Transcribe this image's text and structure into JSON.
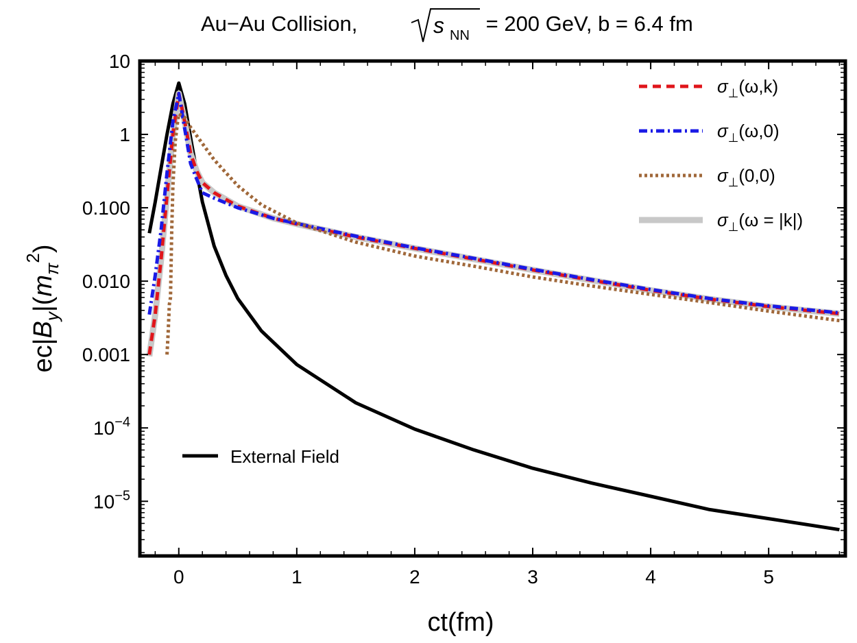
{
  "chart_data": {
    "type": "line",
    "title": {
      "prefix": "Au−Au Collision,",
      "sqrt_symbol": "s",
      "sqrt_subscript": "NN",
      "suffix": " = 200 GeV, b = 6.4 fm"
    },
    "xlabel": "ct(fm)",
    "ylabel": {
      "prefix": "ec|",
      "var": "B",
      "var_sub": "y",
      "mid": "|(",
      "mass": "m",
      "mass_sub": "π",
      "mass_sup": "2",
      "suffix": ")"
    },
    "y_scale": "log",
    "xlim": [
      -0.33,
      5.65
    ],
    "ylim": [
      1.8e-06,
      10
    ],
    "x_ticks": [
      {
        "value": 0,
        "label": "0"
      },
      {
        "value": 1,
        "label": "1"
      },
      {
        "value": 2,
        "label": "2"
      },
      {
        "value": 3,
        "label": "3"
      },
      {
        "value": 4,
        "label": "4"
      },
      {
        "value": 5,
        "label": "5"
      }
    ],
    "y_ticks": [
      {
        "value": 10,
        "label": "10"
      },
      {
        "value": 1,
        "label": "1"
      },
      {
        "value": 0.1,
        "label": "0.100"
      },
      {
        "value": 0.01,
        "label": "0.010"
      },
      {
        "value": 0.001,
        "label": "0.001"
      },
      {
        "value": 0.0001,
        "label": "10",
        "exp": "−4"
      },
      {
        "value": 1e-05,
        "label": "10",
        "exp": "−5"
      }
    ],
    "legend_position": "top-right",
    "series": [
      {
        "name": "External Field",
        "legend_position": "bottom-left",
        "color": "#000000",
        "dash": "solid",
        "x": [
          -0.25,
          -0.2,
          -0.15,
          -0.1,
          -0.05,
          0,
          0.05,
          0.1,
          0.15,
          0.2,
          0.3,
          0.4,
          0.5,
          0.7,
          1.0,
          1.5,
          2.0,
          2.5,
          3.0,
          3.5,
          4.0,
          4.5,
          5.0,
          5.6
        ],
        "y": [
          0.045,
          0.12,
          0.35,
          1.0,
          2.6,
          5.0,
          2.6,
          0.9,
          0.32,
          0.12,
          0.03,
          0.012,
          0.0058,
          0.0021,
          0.00073,
          0.00022,
          9.63e-05,
          5.02e-05,
          2.82e-05,
          1.77e-05,
          1.17e-05,
          7.7e-06,
          5.8e-06,
          4.1e-06
        ]
      },
      {
        "name": "σ⊥(ω = |k|)",
        "legend_label": {
          "sigma": "σ",
          "sub": "⊥",
          "args": "(ω = |k|)"
        },
        "color": "#c8c8c8",
        "dash": "solid",
        "x": [
          -0.25,
          -0.2,
          -0.15,
          -0.1,
          -0.05,
          0,
          0.05,
          0.1,
          0.15,
          0.2,
          0.3,
          0.5,
          0.8,
          1.0,
          1.5,
          2.0,
          2.5,
          3.0,
          3.5,
          4.0,
          4.5,
          5.0,
          5.6
        ],
        "y": [
          0.00095,
          0.0035,
          0.02,
          0.15,
          1.0,
          3.6,
          1.5,
          0.55,
          0.32,
          0.22,
          0.16,
          0.105,
          0.072,
          0.06,
          0.04,
          0.028,
          0.02,
          0.0142,
          0.0103,
          0.0075,
          0.0057,
          0.0045,
          0.0036
        ]
      },
      {
        "name": "σ⊥(ω,k)",
        "legend_label": {
          "sigma": "σ",
          "sub": "⊥",
          "args": "(ω,k)"
        },
        "color": "#e0151b",
        "dash": "12 8",
        "x": [
          -0.25,
          -0.2,
          -0.15,
          -0.1,
          -0.05,
          0,
          0.05,
          0.1,
          0.15,
          0.2,
          0.3,
          0.5,
          0.8,
          1.0,
          1.5,
          2.0,
          2.5,
          3.0,
          3.5,
          4.0,
          4.5,
          5.0,
          5.6
        ],
        "y": [
          0.001,
          0.0035,
          0.02,
          0.15,
          1.0,
          3.6,
          1.5,
          0.55,
          0.32,
          0.22,
          0.16,
          0.105,
          0.072,
          0.06,
          0.04,
          0.028,
          0.02,
          0.0142,
          0.0103,
          0.0075,
          0.0057,
          0.0045,
          0.0036
        ]
      },
      {
        "name": "σ⊥(ω,0)",
        "legend_label": {
          "sigma": "σ",
          "sub": "⊥",
          "args": "(ω,0)"
        },
        "color": "#1a1ae6",
        "dash": "12 5 3 5",
        "x": [
          -0.25,
          -0.2,
          -0.15,
          -0.1,
          -0.05,
          0,
          0.05,
          0.1,
          0.15,
          0.2,
          0.3,
          0.5,
          0.8,
          1.0,
          1.5,
          2.0,
          2.5,
          3.0,
          3.5,
          4.0,
          4.5,
          5.0,
          5.6
        ],
        "y": [
          0.0035,
          0.012,
          0.05,
          0.3,
          1.5,
          3.6,
          1.2,
          0.4,
          0.25,
          0.16,
          0.135,
          0.1,
          0.072,
          0.061,
          0.041,
          0.0285,
          0.0205,
          0.0145,
          0.0105,
          0.0077,
          0.0058,
          0.0046,
          0.0037
        ]
      },
      {
        "name": "σ⊥(0,0)",
        "legend_label": {
          "sigma": "σ",
          "sub": "⊥",
          "args": "(0,0)"
        },
        "color": "#a0683a",
        "dash": "4 4",
        "x": [
          -0.1,
          -0.09,
          -0.08,
          -0.07,
          -0.06,
          -0.05,
          -0.03,
          -0.01,
          0.0,
          0.05,
          0.1,
          0.2,
          0.3,
          0.5,
          0.7,
          1.0,
          1.5,
          2.0,
          2.5,
          3.0,
          3.5,
          4.0,
          4.5,
          5.0,
          5.6
        ],
        "y": [
          0.001,
          0.002,
          0.0048,
          0.006,
          0.05,
          0.2,
          0.8,
          1.5,
          1.9,
          1.7,
          1.25,
          0.75,
          0.45,
          0.2,
          0.11,
          0.062,
          0.034,
          0.022,
          0.016,
          0.0114,
          0.0086,
          0.0066,
          0.0051,
          0.0039,
          0.0029
        ]
      }
    ]
  }
}
